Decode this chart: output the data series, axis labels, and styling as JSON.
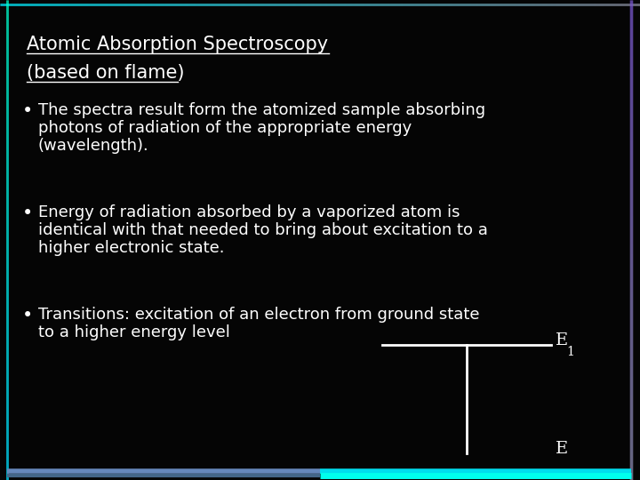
{
  "bg_color": "#050505",
  "title_line1": "Atomic Absorption Spectroscopy",
  "title_line2": "(based on flame)",
  "title_color": "#ffffff",
  "title_fontsize": 15,
  "bullet_color": "#ffffff",
  "bullet_fontsize": 13,
  "bullet1_line1": "The spectra result form the atomized sample absorbing",
  "bullet1_line2": "photons of radiation of the appropriate energy",
  "bullet1_line3": "(wavelength).",
  "bullet2_line1": "Energy of radiation absorbed by a vaporized atom is",
  "bullet2_line2": "identical with that needed to bring about excitation to a",
  "bullet2_line3": "higher electronic state.",
  "bullet3_line1": "Transitions: excitation of an electron from ground state",
  "bullet3_line2": "to a higher energy level",
  "E1_label": "E",
  "E1_sub": "1",
  "E0_label": "E",
  "font_family": "DejaVu Sans"
}
